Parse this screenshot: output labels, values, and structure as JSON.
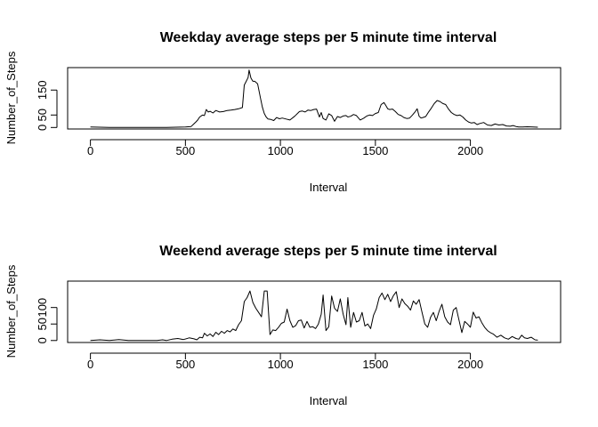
{
  "chart_data": [
    {
      "type": "line",
      "title": "Weekday average steps per 5 minute time interval",
      "xlabel": "Interval",
      "ylabel": "Number_of_Steps",
      "xlim": [
        -120,
        2475
      ],
      "ylim": [
        -6,
        240
      ],
      "xticks": [
        0,
        500,
        1000,
        1500,
        2000
      ],
      "yticks": [
        0,
        50,
        150
      ],
      "grid": false,
      "x": [
        0,
        100,
        200,
        300,
        400,
        500,
        530,
        545,
        555,
        565,
        575,
        590,
        600,
        610,
        620,
        630,
        645,
        660,
        680,
        700,
        720,
        740,
        760,
        780,
        800,
        810,
        820,
        830,
        835,
        845,
        855,
        865,
        880,
        895,
        905,
        915,
        925,
        935,
        950,
        965,
        980,
        995,
        1010,
        1030,
        1050,
        1075,
        1100,
        1115,
        1130,
        1145,
        1160,
        1175,
        1190,
        1205,
        1215,
        1225,
        1240,
        1255,
        1270,
        1285,
        1300,
        1315,
        1330,
        1345,
        1355,
        1370,
        1385,
        1400,
        1420,
        1440,
        1455,
        1470,
        1485,
        1500,
        1515,
        1530,
        1545,
        1555,
        1565,
        1575,
        1590,
        1605,
        1620,
        1635,
        1650,
        1665,
        1680,
        1695,
        1710,
        1720,
        1730,
        1740,
        1750,
        1765,
        1780,
        1795,
        1810,
        1825,
        1840,
        1855,
        1870,
        1885,
        1900,
        1915,
        1930,
        1945,
        1960,
        1975,
        1990,
        2005,
        2020,
        2035,
        2050,
        2070,
        2090,
        2110,
        2130,
        2150,
        2170,
        2190,
        2210,
        2225,
        2240,
        2255,
        2275,
        2300,
        2330,
        2355
      ],
      "y": [
        2,
        0,
        0,
        0,
        0,
        2,
        4,
        15,
        22,
        30,
        42,
        50,
        48,
        72,
        62,
        65,
        58,
        68,
        62,
        64,
        68,
        70,
        72,
        75,
        80,
        170,
        185,
        200,
        230,
        198,
        185,
        185,
        175,
        118,
        82,
        56,
        42,
        34,
        32,
        28,
        40,
        35,
        38,
        34,
        30,
        45,
        64,
        66,
        62,
        70,
        68,
        72,
        74,
        42,
        60,
        36,
        30,
        55,
        48,
        25,
        44,
        40,
        46,
        48,
        42,
        45,
        52,
        48,
        30,
        38,
        46,
        50,
        48,
        56,
        60,
        92,
        100,
        88,
        75,
        72,
        74,
        64,
        52,
        48,
        40,
        36,
        38,
        50,
        64,
        75,
        45,
        38,
        40,
        44,
        62,
        78,
        96,
        108,
        104,
        96,
        92,
        74,
        60,
        52,
        48,
        50,
        42,
        30,
        22,
        18,
        20,
        12,
        16,
        20,
        10,
        8,
        14,
        10,
        12,
        6,
        5,
        8,
        4,
        2,
        2,
        3,
        2,
        1
      ]
    },
    {
      "type": "line",
      "title": "Weekend average steps per 5 minute time interval",
      "xlabel": "Interval",
      "ylabel": "Number_of_Steps",
      "xlim": [
        -120,
        2475
      ],
      "ylim": [
        -6,
        180
      ],
      "xticks": [
        0,
        500,
        1000,
        1500,
        2000
      ],
      "yticks": [
        0,
        50,
        100
      ],
      "grid": false,
      "x": [
        0,
        50,
        100,
        150,
        200,
        250,
        300,
        350,
        380,
        400,
        430,
        460,
        490,
        520,
        545,
        560,
        575,
        590,
        600,
        615,
        630,
        645,
        660,
        675,
        690,
        705,
        720,
        735,
        750,
        765,
        780,
        795,
        810,
        825,
        840,
        855,
        870,
        885,
        900,
        915,
        930,
        945,
        960,
        975,
        990,
        1005,
        1020,
        1035,
        1050,
        1065,
        1080,
        1095,
        1110,
        1125,
        1140,
        1155,
        1170,
        1185,
        1200,
        1215,
        1225,
        1240,
        1255,
        1270,
        1285,
        1300,
        1315,
        1330,
        1345,
        1355,
        1370,
        1385,
        1400,
        1415,
        1430,
        1445,
        1460,
        1475,
        1490,
        1505,
        1520,
        1535,
        1550,
        1565,
        1580,
        1595,
        1610,
        1625,
        1640,
        1655,
        1670,
        1685,
        1700,
        1715,
        1730,
        1745,
        1760,
        1775,
        1790,
        1805,
        1820,
        1835,
        1850,
        1865,
        1880,
        1895,
        1910,
        1925,
        1940,
        1955,
        1970,
        1985,
        2000,
        2015,
        2030,
        2045,
        2060,
        2075,
        2090,
        2105,
        2120,
        2140,
        2160,
        2180,
        2200,
        2220,
        2240,
        2255,
        2270,
        2285,
        2300,
        2320,
        2340,
        2355
      ],
      "y": [
        0,
        2,
        0,
        3,
        0,
        0,
        0,
        0,
        2,
        0,
        4,
        6,
        3,
        8,
        5,
        2,
        10,
        8,
        22,
        14,
        20,
        12,
        25,
        18,
        28,
        22,
        30,
        26,
        35,
        30,
        48,
        60,
        118,
        130,
        150,
        115,
        98,
        85,
        72,
        150,
        150,
        18,
        32,
        30,
        40,
        52,
        56,
        95,
        60,
        40,
        45,
        60,
        62,
        38,
        58,
        40,
        42,
        36,
        50,
        80,
        138,
        30,
        42,
        135,
        98,
        88,
        126,
        80,
        48,
        130,
        40,
        85,
        56,
        60,
        85,
        44,
        50,
        36,
        76,
        96,
        130,
        144,
        124,
        140,
        118,
        136,
        148,
        100,
        126,
        112,
        104,
        92,
        120,
        110,
        124,
        86,
        50,
        40,
        70,
        85,
        60,
        88,
        110,
        72,
        56,
        48,
        92,
        100,
        62,
        24,
        58,
        50,
        40,
        86,
        68,
        72,
        54,
        40,
        30,
        24,
        20,
        10,
        16,
        8,
        4,
        12,
        6,
        4,
        16,
        8,
        6,
        10,
        2,
        1
      ]
    }
  ]
}
